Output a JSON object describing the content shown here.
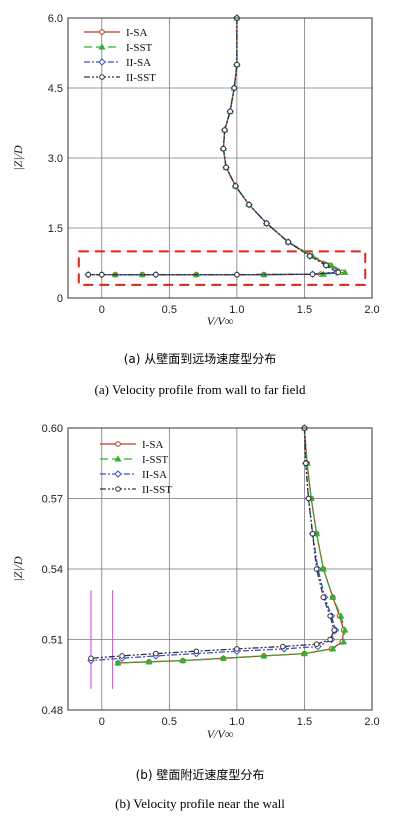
{
  "captions": {
    "a_zh": "(a) 从壁面到远场速度型分布",
    "a_en": "(a) Velocity profile from wall to far field",
    "b_zh": "(b) 壁面附近速度型分布",
    "b_en": "(b) Velocity profile near the wall"
  },
  "chart_data": [
    {
      "type": "line",
      "xlabel": "V/V∞",
      "ylabel": "|Z|/D",
      "xlim": [
        -0.25,
        2.0
      ],
      "ylim": [
        0,
        6.0
      ],
      "xticks": [
        0,
        0.5,
        1.0,
        1.5,
        2.0
      ],
      "xtick_labels": [
        "0",
        "0.5",
        "1.0",
        "1.5",
        "2.0"
      ],
      "yticks": [
        0,
        1.5,
        3.0,
        4.5,
        6.0
      ],
      "ytick_labels": [
        "0",
        "1.5",
        "3.0",
        "4.5",
        "6.0"
      ],
      "grid": true,
      "legend_position": "top-left",
      "annotation": "dashed red rectangle around near-wall region",
      "highlight_box": {
        "x": [
          -0.17,
          1.95
        ],
        "y": [
          0.28,
          1.0
        ],
        "color": "#e2231a"
      },
      "series": [
        {
          "name": "I-SA",
          "color": "#c0392b",
          "dash": "solid",
          "marker": "circle",
          "x": [
            1.0,
            1.0,
            0.98,
            0.95,
            0.91,
            0.9,
            0.92,
            0.99,
            1.09,
            1.22,
            1.38,
            1.55,
            1.68,
            1.78,
            1.62,
            1.2,
            0.7,
            0.3,
            0.1
          ],
          "y": [
            6.0,
            5.0,
            4.5,
            4.0,
            3.6,
            3.2,
            2.8,
            2.4,
            2.0,
            1.6,
            1.2,
            0.9,
            0.7,
            0.55,
            0.51,
            0.5,
            0.5,
            0.5,
            0.5
          ]
        },
        {
          "name": "I-SST",
          "color": "#2bb52b",
          "dash": "8,4",
          "marker": "triangle",
          "x": [
            1.0,
            1.0,
            0.98,
            0.95,
            0.91,
            0.9,
            0.92,
            0.99,
            1.09,
            1.22,
            1.38,
            1.56,
            1.7,
            1.8,
            1.64,
            1.2,
            0.7,
            0.3,
            0.1
          ],
          "y": [
            6.0,
            5.0,
            4.5,
            4.0,
            3.6,
            3.2,
            2.8,
            2.4,
            2.0,
            1.6,
            1.2,
            0.9,
            0.7,
            0.55,
            0.51,
            0.5,
            0.5,
            0.5,
            0.5
          ]
        },
        {
          "name": "II-SA",
          "color": "#3f51c8",
          "dash": "6,2,2,2",
          "marker": "diamond",
          "x": [
            1.0,
            1.0,
            0.98,
            0.95,
            0.91,
            0.9,
            0.92,
            0.99,
            1.09,
            1.22,
            1.38,
            1.54,
            1.66,
            1.74,
            1.56,
            1.0,
            0.4,
            0.0,
            -0.1
          ],
          "y": [
            6.0,
            5.0,
            4.5,
            4.0,
            3.6,
            3.2,
            2.8,
            2.4,
            2.0,
            1.6,
            1.2,
            0.9,
            0.7,
            0.55,
            0.51,
            0.5,
            0.5,
            0.5,
            0.5
          ]
        },
        {
          "name": "II-SST",
          "color": "#333333",
          "dash": "6,2,2,2,2,2",
          "marker": "circle-open",
          "x": [
            1.0,
            1.0,
            0.98,
            0.95,
            0.91,
            0.9,
            0.92,
            0.99,
            1.09,
            1.22,
            1.38,
            1.54,
            1.66,
            1.75,
            1.56,
            1.0,
            0.4,
            0.0,
            -0.1
          ],
          "y": [
            6.0,
            5.0,
            4.5,
            4.0,
            3.6,
            3.2,
            2.8,
            2.4,
            2.0,
            1.6,
            1.2,
            0.9,
            0.7,
            0.55,
            0.51,
            0.5,
            0.5,
            0.5,
            0.5
          ]
        }
      ]
    },
    {
      "type": "line",
      "xlabel": "V/V∞",
      "ylabel": "|Z|/D",
      "xlim": [
        -0.25,
        2.0
      ],
      "ylim": [
        0.48,
        0.6
      ],
      "xticks": [
        0,
        0.5,
        1.0,
        1.5,
        2.0
      ],
      "xtick_labels": [
        "0",
        "0.5",
        "1.0",
        "1.5",
        "2.0"
      ],
      "yticks": [
        0.48,
        0.51,
        0.54,
        0.57,
        0.6
      ],
      "ytick_labels": [
        "0.48",
        "0.51",
        "0.54",
        "0.57",
        "0.60"
      ],
      "grid": true,
      "legend_position": "top-left",
      "vertical_markers": {
        "x": [
          -0.08,
          0.08
        ],
        "y": [
          0.489,
          0.531
        ],
        "color": "#e05ce0"
      },
      "series": [
        {
          "name": "I-SA",
          "color": "#c0392b",
          "dash": "solid",
          "marker": "circle",
          "x": [
            1.5,
            1.52,
            1.55,
            1.59,
            1.64,
            1.71,
            1.76,
            1.79,
            1.78,
            1.7,
            1.5,
            1.2,
            0.9,
            0.6,
            0.35,
            0.12
          ],
          "y": [
            0.6,
            0.585,
            0.57,
            0.555,
            0.54,
            0.528,
            0.52,
            0.514,
            0.509,
            0.506,
            0.504,
            0.503,
            0.502,
            0.501,
            0.5005,
            0.5
          ]
        },
        {
          "name": "I-SST",
          "color": "#2bb52b",
          "dash": "8,4",
          "marker": "triangle",
          "x": [
            1.5,
            1.52,
            1.55,
            1.59,
            1.64,
            1.71,
            1.77,
            1.8,
            1.79,
            1.71,
            1.5,
            1.2,
            0.9,
            0.6,
            0.35,
            0.12
          ],
          "y": [
            0.6,
            0.585,
            0.57,
            0.555,
            0.54,
            0.528,
            0.52,
            0.514,
            0.509,
            0.506,
            0.504,
            0.503,
            0.502,
            0.501,
            0.5005,
            0.5
          ]
        },
        {
          "name": "II-SA",
          "color": "#3f51c8",
          "dash": "6,2,2,2",
          "marker": "diamond",
          "x": [
            1.5,
            1.51,
            1.53,
            1.56,
            1.6,
            1.65,
            1.7,
            1.73,
            1.7,
            1.6,
            1.35,
            1.0,
            0.7,
            0.4,
            0.15,
            -0.08
          ],
          "y": [
            0.6,
            0.585,
            0.57,
            0.555,
            0.54,
            0.528,
            0.52,
            0.514,
            0.51,
            0.507,
            0.506,
            0.505,
            0.504,
            0.503,
            0.502,
            0.501
          ]
        },
        {
          "name": "II-SST",
          "color": "#333333",
          "dash": "6,2,2,2,2,2",
          "marker": "circle-open",
          "x": [
            1.5,
            1.51,
            1.53,
            1.56,
            1.59,
            1.64,
            1.69,
            1.72,
            1.69,
            1.59,
            1.34,
            1.0,
            0.7,
            0.4,
            0.15,
            -0.08
          ],
          "y": [
            0.6,
            0.585,
            0.57,
            0.555,
            0.54,
            0.528,
            0.52,
            0.514,
            0.51,
            0.508,
            0.507,
            0.506,
            0.505,
            0.504,
            0.503,
            0.502
          ]
        }
      ]
    }
  ]
}
